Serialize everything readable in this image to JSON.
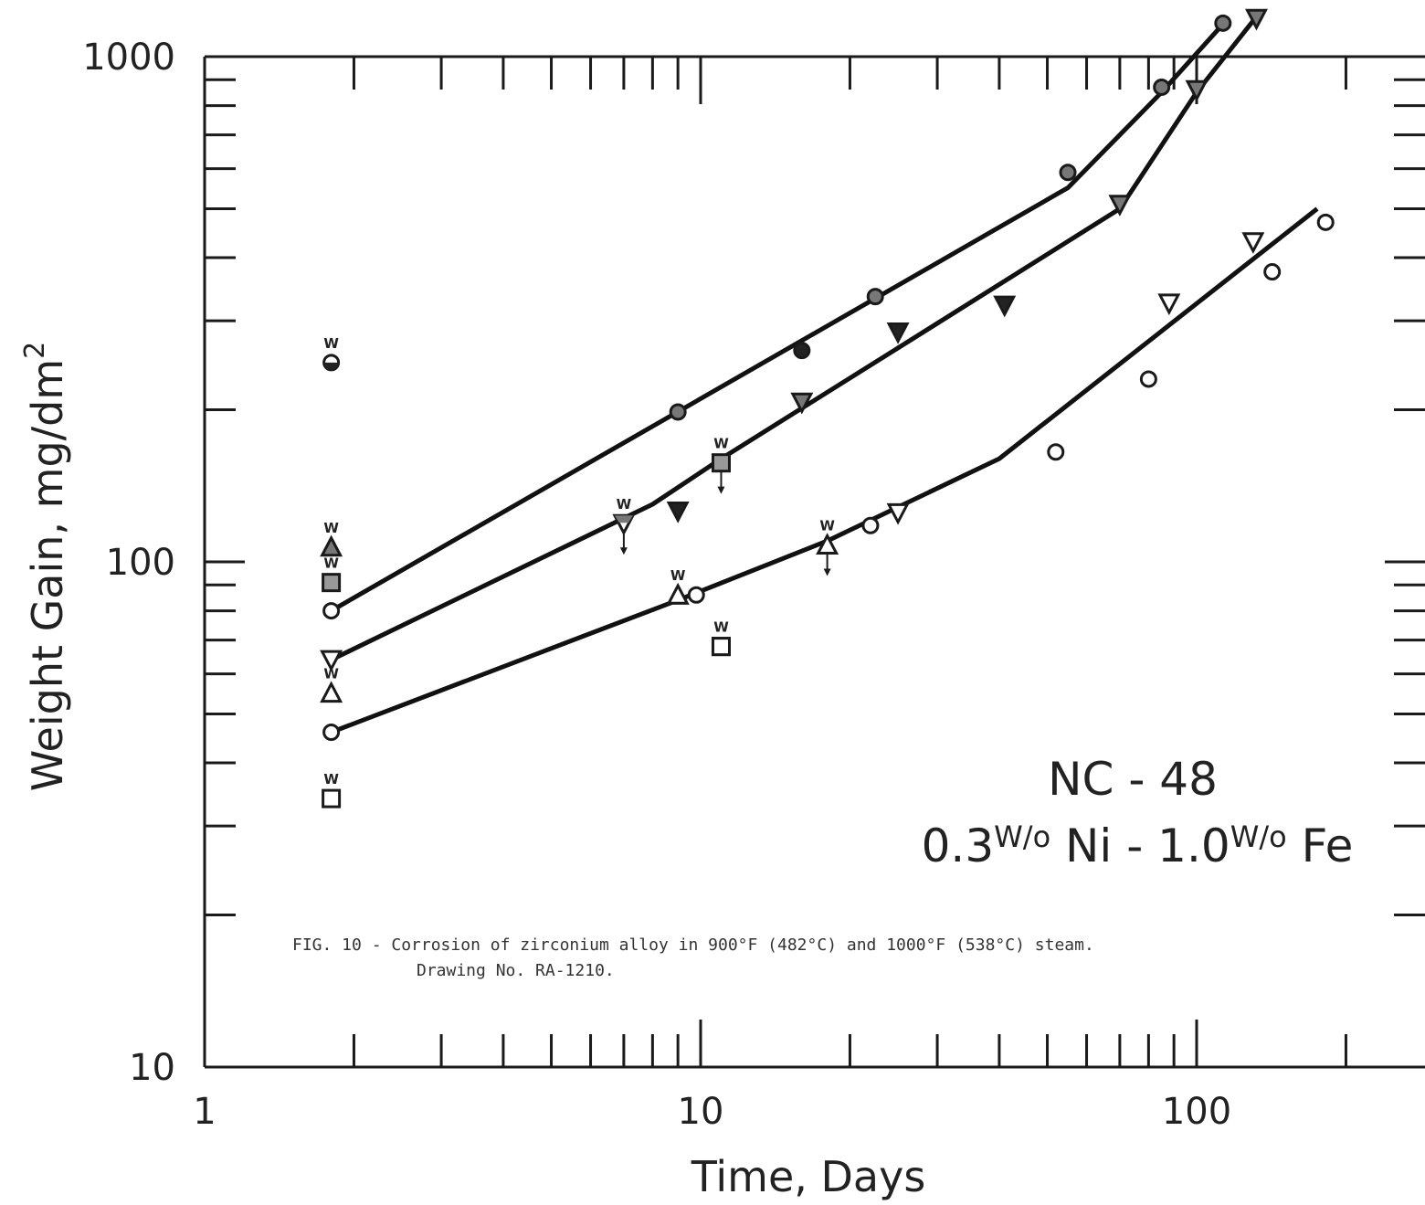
{
  "chart_data": {
    "type": "scatter",
    "title": "",
    "xlabel": "Time, Days",
    "ylabel": "Weight Gain, mg/dm",
    "ylabel_sup": "2",
    "x_scale": "log",
    "y_scale": "log",
    "xlim": [
      1,
      300
    ],
    "ylim": [
      10,
      1000
    ],
    "x_tick_labels": [
      "1",
      "10",
      "100"
    ],
    "x_tick_values": [
      1,
      10,
      100
    ],
    "y_tick_labels": [
      "10",
      "100",
      "1000"
    ],
    "y_tick_values": [
      10,
      100,
      1000
    ],
    "grid": false,
    "annotation": {
      "line1": "NC - 48",
      "line2_a": "0.3",
      "line2_b": "W/o",
      "line2_c": " Ni - 1.0",
      "line2_d": "W/o",
      "line2_e": " Fe"
    },
    "caption": {
      "line1": "FIG. 10 - Corrosion of zirconium alloy in 900°F (482°C) and 1000°F (538°C) steam.",
      "line2": "Drawing No. RA-1210."
    },
    "withdrawn_marker_label": "W",
    "curves": [
      {
        "x": [
          1.8,
          55,
          85,
          113
        ],
        "y": [
          80,
          550,
          850,
          1160
        ]
      },
      {
        "x": [
          1.8,
          8,
          11,
          25,
          70,
          100,
          132
        ],
        "y": [
          64,
          130,
          160,
          265,
          500,
          850,
          1200
        ]
      },
      {
        "x": [
          1.8,
          9,
          18,
          40,
          175
        ],
        "y": [
          46,
          84,
          110,
          160,
          500
        ]
      }
    ],
    "series": [
      {
        "marker": "circle-dotted",
        "fill": "#7a7a7a",
        "x": [
          9,
          22.5,
          55,
          85,
          113
        ],
        "y": [
          198,
          335,
          590,
          870,
          1165
        ]
      },
      {
        "marker": "circle-filled",
        "fill": "#222222",
        "x": [
          16
        ],
        "y": [
          262
        ]
      },
      {
        "marker": "tri-down-dotted",
        "fill": "#7a7a7a",
        "x": [
          16,
          70,
          100,
          132
        ],
        "y": [
          207,
          510,
          860,
          1190
        ]
      },
      {
        "marker": "tri-down-filled",
        "fill": "#222222",
        "x": [
          9,
          25,
          41
        ],
        "y": [
          126,
          285,
          322
        ]
      },
      {
        "marker": "tri-down-open",
        "fill": "#ffffff",
        "x": [
          25,
          88,
          130
        ],
        "y": [
          125,
          325,
          430
        ]
      },
      {
        "marker": "circle-open",
        "fill": "#ffffff",
        "x": [
          1.8,
          1.8,
          9.8,
          22,
          52,
          80,
          142,
          182
        ],
        "y": [
          80,
          46,
          86,
          118,
          165,
          230,
          375,
          470
        ]
      },
      {
        "marker": "triangle-up-open",
        "fill": "#ffffff",
        "x": [
          9
        ],
        "y": [
          86
        ]
      },
      {
        "marker": "square-open",
        "fill": "#ffffff",
        "x": [
          11
        ],
        "y": [
          68
        ]
      },
      {
        "marker": "tri-down-open",
        "fill": "#ffffff",
        "x": [
          1.8
        ],
        "y": [
          64
        ]
      }
    ],
    "withdrawn_points": [
      {
        "marker": "half-filled-circle",
        "x": 1.8,
        "y": 248,
        "arrow": false
      },
      {
        "marker": "triangle-up-dotted",
        "x": 1.8,
        "y": 107,
        "arrow": false
      },
      {
        "marker": "square-dotted",
        "x": 1.8,
        "y": 91,
        "arrow": false
      },
      {
        "marker": "triangle-up-open",
        "x": 1.8,
        "y": 55,
        "arrow": false
      },
      {
        "marker": "square-open",
        "x": 1.8,
        "y": 34,
        "arrow": false
      },
      {
        "marker": "tri-down-half",
        "x": 7,
        "y": 119,
        "arrow": true
      },
      {
        "marker": "square-dotted",
        "x": 11,
        "y": 157,
        "arrow": true
      },
      {
        "marker": "triangle-up-open",
        "x": 9,
        "y": 86,
        "arrow": false
      },
      {
        "marker": "square-open",
        "x": 11,
        "y": 68,
        "arrow": false
      },
      {
        "marker": "triangle-up-open",
        "x": 18,
        "y": 108,
        "arrow": true
      }
    ]
  }
}
